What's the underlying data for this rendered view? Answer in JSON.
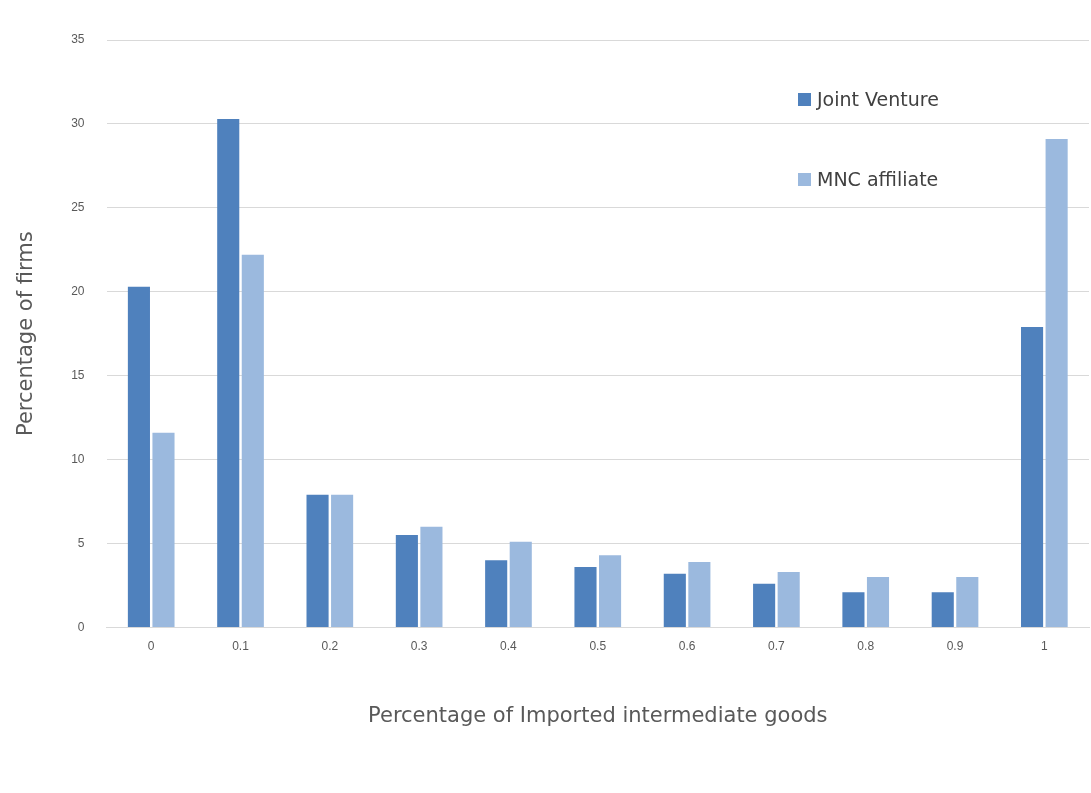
{
  "chart_data": {
    "type": "bar",
    "xlabel": "Percentage of Imported intermediate goods",
    "ylabel": "Percentage of firms",
    "categories": [
      "0",
      "0.1",
      "0.2",
      "0.3",
      "0.4",
      "0.5",
      "0.6",
      "0.7",
      "0.8",
      "0.9",
      "1"
    ],
    "series": [
      {
        "name": "Joint Venture",
        "color": "#4f81bd",
        "values": [
          20.3,
          30.3,
          7.9,
          5.5,
          4.0,
          3.6,
          3.2,
          2.6,
          2.1,
          2.1,
          17.9
        ]
      },
      {
        "name": "MNC affiliate",
        "color": "#9bb9de",
        "values": [
          11.6,
          22.2,
          7.9,
          6.0,
          5.1,
          4.3,
          3.9,
          3.3,
          3.0,
          3.0,
          29.1
        ]
      }
    ],
    "ylim": [
      0,
      35
    ],
    "yticks": [
      0,
      5,
      10,
      15,
      20,
      25,
      30,
      35
    ],
    "grid": "y",
    "legend": "top right"
  }
}
